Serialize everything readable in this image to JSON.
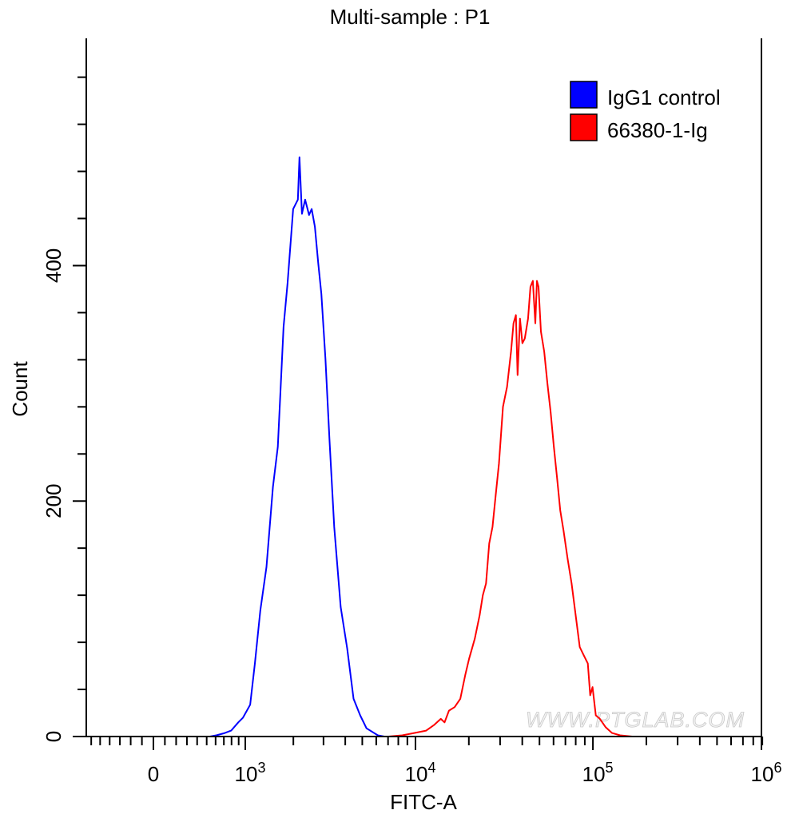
{
  "chart_data": {
    "type": "line",
    "subtype": "flow-cytometry-histogram",
    "title": "Multi-sample : P1",
    "xlabel": "FITC-A",
    "ylabel": "Count",
    "x_scale": "biexponential",
    "xlim": [
      -670,
      1000000
    ],
    "ylim": [
      0,
      593
    ],
    "x_ticks": [
      {
        "value": 0,
        "base": "0",
        "exp": ""
      },
      {
        "value": 1000,
        "base": "10",
        "exp": "3"
      },
      {
        "value": 10000,
        "base": "10",
        "exp": "4"
      },
      {
        "value": 100000,
        "base": "10",
        "exp": "5"
      },
      {
        "value": 1000000,
        "base": "10",
        "exp": "6"
      }
    ],
    "y_ticks": [
      0,
      200,
      400
    ],
    "grid": false,
    "legend": {
      "position": "top-right",
      "entries": [
        {
          "label": "IgG1 control",
          "color": "#0000ff"
        },
        {
          "label": "66380-1-Ig",
          "color": "#ff0000"
        }
      ]
    },
    "series": [
      {
        "name": "IgG1 control",
        "color": "#0000ff",
        "points": [
          [
            536,
            0
          ],
          [
            609,
            1
          ],
          [
            712,
            3
          ],
          [
            795,
            5
          ],
          [
            894,
            12
          ],
          [
            964,
            16
          ],
          [
            1078,
            27
          ],
          [
            1157,
            62
          ],
          [
            1254,
            107
          ],
          [
            1372,
            144
          ],
          [
            1505,
            212
          ],
          [
            1613,
            246
          ],
          [
            1748,
            348
          ],
          [
            1846,
            385
          ],
          [
            1994,
            448
          ],
          [
            2127,
            456
          ],
          [
            2174,
            492
          ],
          [
            2248,
            444
          ],
          [
            2348,
            456
          ],
          [
            2475,
            443
          ],
          [
            2562,
            448
          ],
          [
            2676,
            433
          ],
          [
            2796,
            402
          ],
          [
            2917,
            376
          ],
          [
            3077,
            321
          ],
          [
            3245,
            253
          ],
          [
            3459,
            178
          ],
          [
            3766,
            110
          ],
          [
            4101,
            75
          ],
          [
            4462,
            32
          ],
          [
            4864,
            18
          ],
          [
            5285,
            7
          ],
          [
            6128,
            1
          ],
          [
            6663,
            0
          ]
        ]
      },
      {
        "name": "66380-1-Ig",
        "color": "#ff0000",
        "points": [
          [
            7040,
            0
          ],
          [
            8430,
            1
          ],
          [
            9840,
            3
          ],
          [
            11500,
            5
          ],
          [
            12780,
            10
          ],
          [
            13900,
            15
          ],
          [
            14600,
            12
          ],
          [
            15450,
            22
          ],
          [
            16630,
            25
          ],
          [
            17900,
            32
          ],
          [
            19070,
            52
          ],
          [
            20070,
            66
          ],
          [
            21600,
            83
          ],
          [
            23000,
            103
          ],
          [
            23970,
            120
          ],
          [
            25000,
            130
          ],
          [
            26060,
            164
          ],
          [
            27180,
            178
          ],
          [
            28350,
            205
          ],
          [
            29570,
            232
          ],
          [
            31150,
            280
          ],
          [
            32820,
            297
          ],
          [
            34590,
            327
          ],
          [
            35700,
            351
          ],
          [
            36850,
            358
          ],
          [
            37650,
            307
          ],
          [
            38830,
            355
          ],
          [
            40040,
            334
          ],
          [
            41340,
            338
          ],
          [
            43110,
            355
          ],
          [
            44470,
            382
          ],
          [
            45870,
            387
          ],
          [
            47360,
            351
          ],
          [
            48370,
            387
          ],
          [
            49400,
            382
          ],
          [
            50950,
            344
          ],
          [
            53130,
            327
          ],
          [
            55400,
            300
          ],
          [
            57780,
            276
          ],
          [
            60260,
            246
          ],
          [
            62860,
            219
          ],
          [
            65500,
            192
          ],
          [
            68300,
            175
          ],
          [
            72000,
            151
          ],
          [
            75870,
            130
          ],
          [
            79940,
            103
          ],
          [
            84270,
            76
          ],
          [
            88770,
            69
          ],
          [
            93580,
            62
          ],
          [
            96530,
            35
          ],
          [
            99550,
            42
          ],
          [
            103800,
            18
          ],
          [
            109500,
            15
          ],
          [
            117800,
            8
          ],
          [
            128100,
            3
          ],
          [
            142200,
            1
          ],
          [
            166300,
            0
          ]
        ]
      }
    ]
  },
  "watermark": "WWW.PTGLAB.COM"
}
